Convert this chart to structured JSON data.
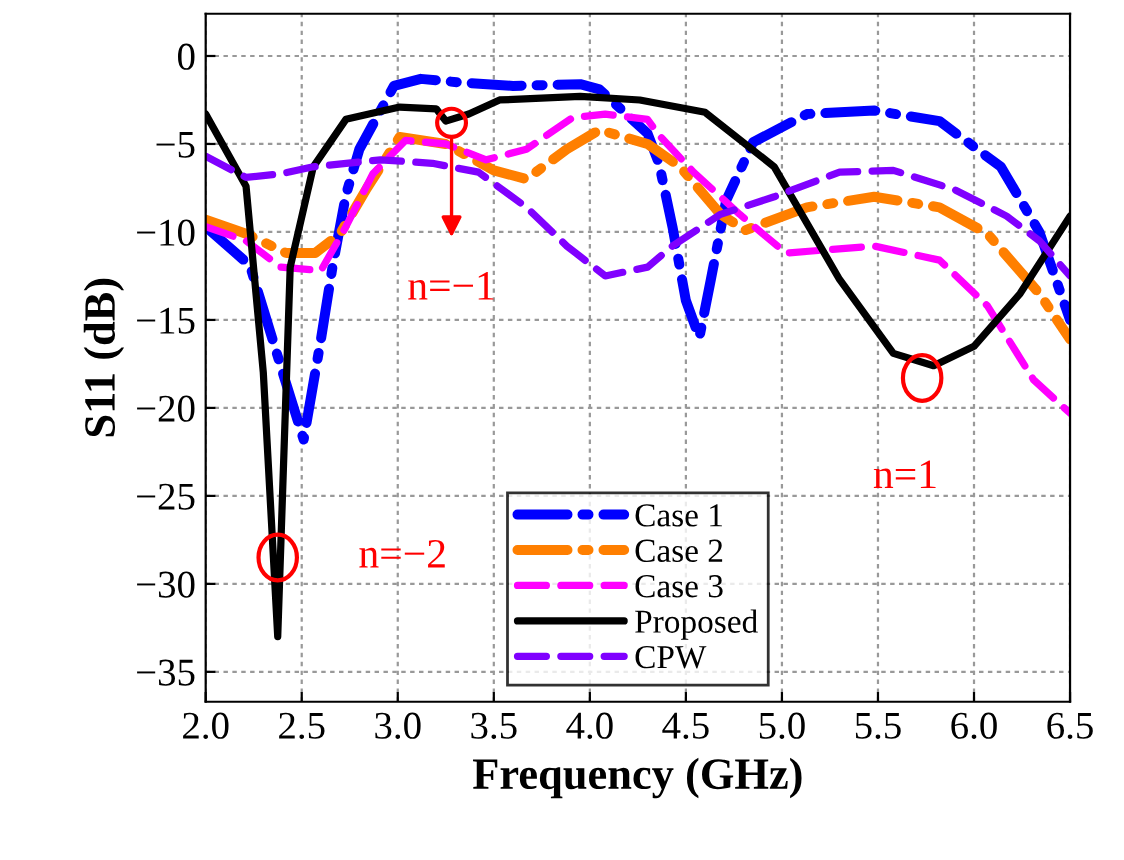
{
  "chart_data": {
    "type": "line",
    "xlabel": "Frequency (GHz)",
    "ylabel": "S11 (dB)",
    "xlim": [
      2.0,
      6.5
    ],
    "ylim": [
      -36.7,
      2.4
    ],
    "xticks": [
      {
        "value": 2,
        "label": "2.0"
      },
      2.5,
      {
        "value": 3,
        "label": "3.0"
      },
      3.5,
      {
        "value": 4,
        "label": "4.0"
      },
      4.5,
      {
        "value": 5,
        "label": "5.0"
      },
      5.5,
      {
        "value": 6,
        "label": "6.0"
      },
      6.5
    ],
    "yticks": [
      0,
      {
        "value": -5,
        "label": "−5"
      },
      {
        "value": -10,
        "label": "−10"
      },
      {
        "value": -15,
        "label": "−15"
      },
      {
        "value": -20,
        "label": "−20"
      },
      {
        "value": -25,
        "label": "−25"
      },
      {
        "value": -30,
        "label": "−30"
      },
      {
        "value": -35,
        "label": "−35"
      }
    ],
    "grid": true,
    "legend": "bottom",
    "series": [
      {
        "name": "Case 1",
        "color": "#0000ff",
        "line_style": "dashdot",
        "x": [
          2.0,
          2.23,
          2.39,
          2.51,
          2.6,
          2.66,
          2.73,
          2.8,
          2.98,
          3.12,
          3.32,
          3.6,
          3.95,
          4.05,
          4.3,
          4.36,
          4.43,
          4.5,
          4.57,
          4.63,
          4.71,
          4.85,
          5.13,
          5.48,
          5.82,
          6.14,
          6.34,
          6.5
        ],
        "values": [
          -9.7,
          -11.9,
          -17.6,
          -21.8,
          -16.1,
          -12.0,
          -7.9,
          -5.3,
          -1.7,
          -1.3,
          -1.5,
          -1.7,
          -1.6,
          -1.9,
          -4.4,
          -6.1,
          -9.7,
          -13.9,
          -16.0,
          -12.7,
          -8.2,
          -4.9,
          -3.3,
          -3.1,
          -3.7,
          -6.3,
          -10.0,
          -15.0
        ]
      },
      {
        "name": "Case 2",
        "color": "#ff7f00",
        "line_style": "dashdot",
        "x": [
          2.0,
          2.21,
          2.42,
          2.57,
          2.7,
          2.84,
          3.01,
          3.25,
          3.5,
          3.67,
          3.88,
          4.05,
          4.3,
          4.47,
          4.68,
          4.81,
          5.13,
          5.48,
          5.82,
          6.07,
          6.34,
          6.5
        ],
        "values": [
          -9.3,
          -10.1,
          -11.2,
          -11.2,
          -10.1,
          -7.5,
          -4.6,
          -5.0,
          -6.5,
          -7.0,
          -5.3,
          -4.2,
          -5.0,
          -6.3,
          -9.0,
          -9.9,
          -8.6,
          -8.0,
          -8.6,
          -10.1,
          -13.5,
          -16.1
        ]
      },
      {
        "name": "Case 3",
        "color": "#ff00ff",
        "line_style": "dashed",
        "x": [
          2.0,
          2.21,
          2.39,
          2.6,
          2.73,
          2.87,
          3.04,
          3.25,
          3.46,
          3.67,
          3.91,
          4.08,
          4.3,
          4.36,
          4.54,
          4.78,
          5.02,
          5.48,
          5.82,
          6.07,
          6.31,
          6.5
        ],
        "values": [
          -9.7,
          -10.5,
          -12.0,
          -12.2,
          -9.7,
          -6.7,
          -4.8,
          -5.0,
          -5.9,
          -5.3,
          -3.5,
          -3.3,
          -3.6,
          -4.5,
          -6.6,
          -9.0,
          -11.2,
          -10.8,
          -11.6,
          -14.2,
          -18.4,
          -20.3
        ]
      },
      {
        "name": "Proposed",
        "color": "#000000",
        "line_style": "solid",
        "x": [
          2.0,
          2.21,
          2.3,
          2.375,
          2.44,
          2.56,
          2.73,
          3.01,
          3.2,
          3.25,
          3.37,
          3.53,
          3.95,
          4.26,
          4.6,
          4.96,
          5.3,
          5.58,
          5.79,
          6.0,
          6.24,
          6.5
        ],
        "values": [
          -3.3,
          -7.4,
          -18.0,
          -33.0,
          -12.0,
          -6.3,
          -3.6,
          -2.9,
          -3.0,
          -3.7,
          -3.3,
          -2.5,
          -2.3,
          -2.5,
          -3.2,
          -6.3,
          -12.7,
          -16.9,
          -17.6,
          -16.5,
          -13.5,
          -9.1
        ]
      },
      {
        "name": "CPW",
        "color": "#8000ff",
        "line_style": "dashed",
        "x": [
          2.0,
          2.21,
          2.39,
          2.56,
          2.91,
          3.18,
          3.42,
          3.67,
          3.88,
          4.08,
          4.3,
          4.43,
          4.68,
          4.96,
          5.3,
          5.58,
          5.9,
          6.17,
          6.34,
          6.5
        ],
        "values": [
          -5.7,
          -6.9,
          -6.7,
          -6.3,
          -5.9,
          -6.1,
          -6.6,
          -8.6,
          -10.8,
          -12.5,
          -12.0,
          -10.8,
          -9.0,
          -8.0,
          -6.6,
          -6.5,
          -7.6,
          -9.1,
          -10.5,
          -12.5
        ]
      }
    ],
    "annotations": [
      {
        "text": "n=−2",
        "x": 2.375,
        "y": -28.5
      },
      {
        "text": "n=−1",
        "x": 3.28,
        "y": -3.8
      },
      {
        "text": "n=1",
        "x": 5.73,
        "y": -18.3
      }
    ]
  }
}
